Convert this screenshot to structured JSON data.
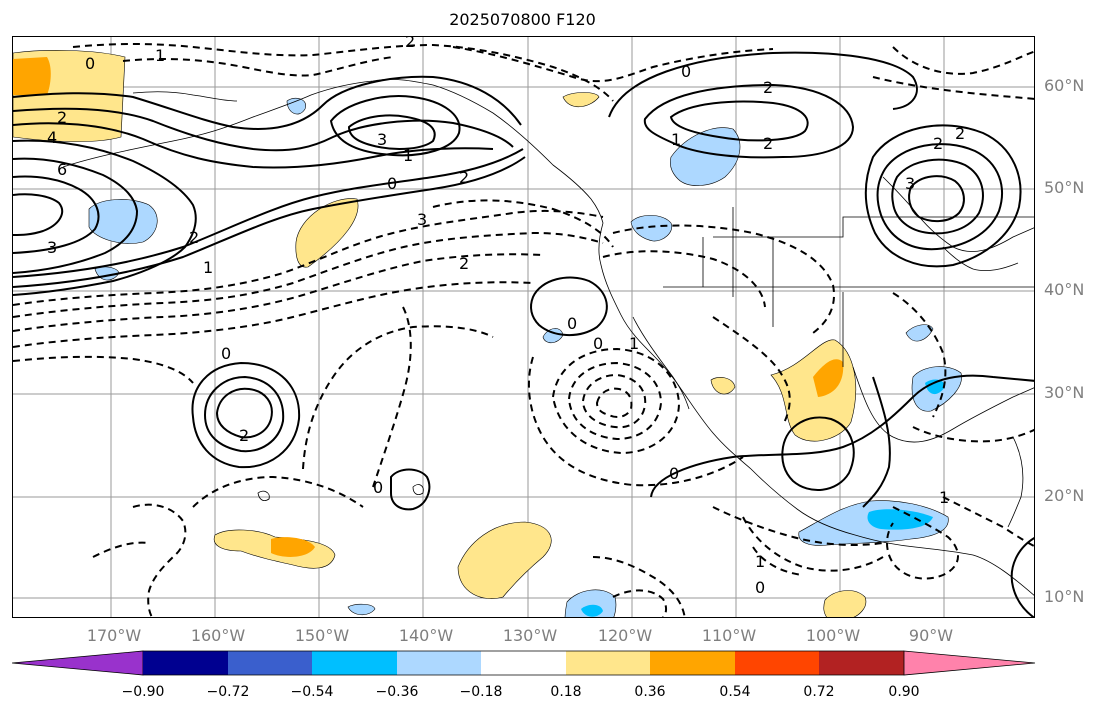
{
  "title": "2025070800 F120",
  "map": {
    "latitude_labels": [
      "60°N",
      "50°N",
      "40°N",
      "30°N",
      "20°N",
      "10°N"
    ],
    "longitude_labels": [
      "170°W",
      "160°W",
      "150°W",
      "140°W",
      "130°W",
      "120°W",
      "110°W",
      "100°W",
      "90°W"
    ],
    "contour_labels": [
      "0",
      "1",
      "2",
      "4",
      "6",
      "2",
      "3",
      "1",
      "3",
      "2",
      "1",
      "2",
      "0",
      "2",
      "3",
      "2",
      "0",
      "1",
      "2",
      "2",
      "3",
      "2",
      "0",
      "0",
      "2",
      "0",
      "0",
      "1",
      "0",
      "1",
      "0",
      "1"
    ],
    "shading": {
      "positive_colors": [
        "#ffe68c",
        "#ffa500",
        "#ff4500",
        "#b22222",
        "#ff82ab"
      ],
      "negative_colors": [
        "#add8ff",
        "#00bfff",
        "#3a5fcd",
        "#000090",
        "#9932cc"
      ]
    },
    "line_styles": {
      "positive": "solid",
      "negative": "dashed"
    }
  },
  "colorbar": {
    "tick_labels": [
      "−0.90",
      "−0.72",
      "−0.54",
      "−0.36",
      "−0.18",
      "0.18",
      "0.36",
      "0.54",
      "0.72",
      "0.90"
    ],
    "colors": [
      "#9932cc",
      "#000090",
      "#3a5fcd",
      "#00bfff",
      "#add8ff",
      "#ffffff",
      "#ffe68c",
      "#ffa500",
      "#ff4500",
      "#b22222",
      "#ff82ab"
    ]
  }
}
